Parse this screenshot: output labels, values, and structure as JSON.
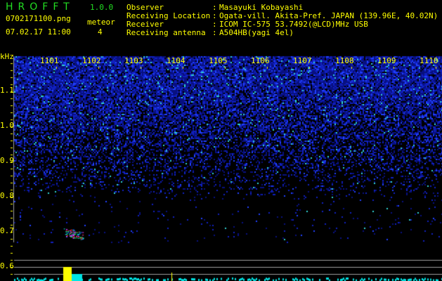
{
  "app": {
    "title": "HROFFT",
    "version": "1.0.0",
    "filename": "0702171100.png",
    "datetime": "07.02.17 11:00",
    "meteor_label": "meteor",
    "meteor_count": "4"
  },
  "info": [
    {
      "label": "Observer",
      "value": "Masayuki Kobayashi"
    },
    {
      "label": "Receiving Location",
      "value": "Ogata-vill. Akita-Pref. JAPAN (139.96E, 40.02N)"
    },
    {
      "label": "Receiver",
      "value": "ICOM IC-575 53.7492(@LCD)MHz USB"
    },
    {
      "label": "Receiving antenna",
      "value": "A504HB(yagi 4el)"
    }
  ],
  "spectrogram": {
    "y_unit": "kHz",
    "y_ticks": [
      "1.1",
      "1.0",
      "0.9",
      "0.8",
      "0.7",
      "0.6"
    ],
    "x_ticks": [
      "1101",
      "1102",
      "1103",
      "1104",
      "1105",
      "1106",
      "1107",
      "1108",
      "1109",
      "1110"
    ],
    "colors": {
      "noise": "#1a2cff",
      "text": "#ffff00",
      "title": "#22dd22",
      "spectrum": "#00e5e5",
      "peak": "#ffff00",
      "grid": "#a0a0a0"
    }
  }
}
